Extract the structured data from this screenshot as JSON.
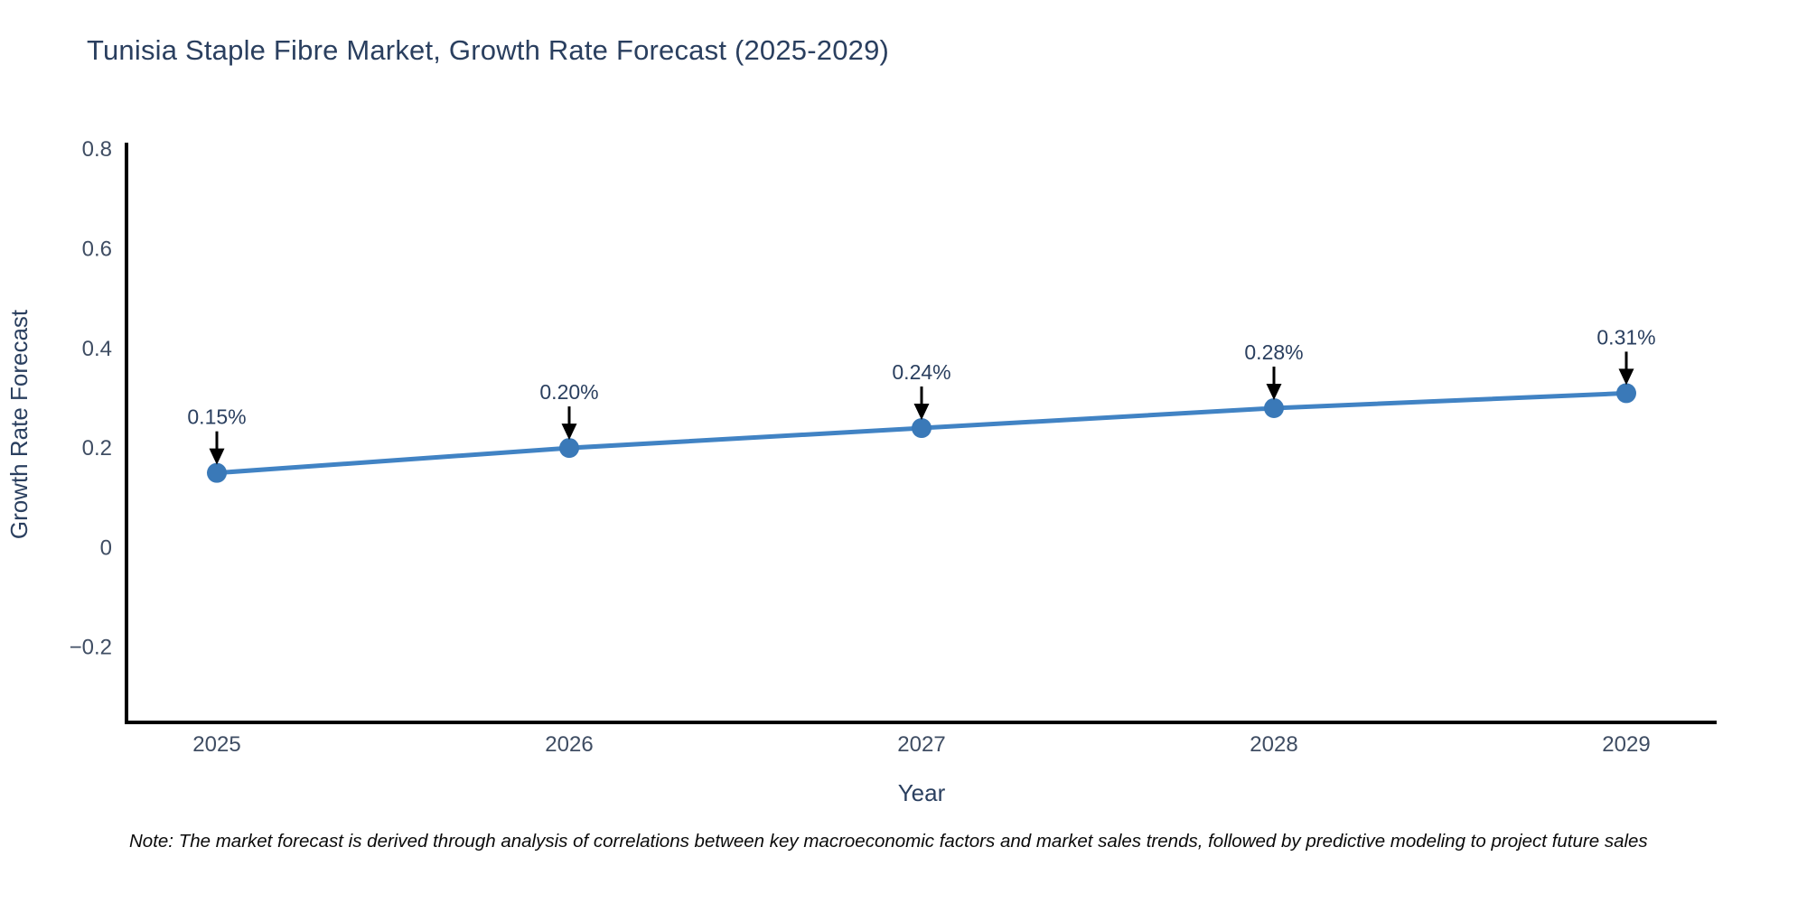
{
  "header": {
    "title": "Tunisia Staple Fibre Market, Growth Rate Forecast (2025-2029)"
  },
  "chart_data": {
    "type": "line",
    "title": "Tunisia Staple Fibre Market, Growth Rate Forecast (2025-2029)",
    "categories": [
      "2025",
      "2026",
      "2027",
      "2028",
      "2029"
    ],
    "values": [
      0.15,
      0.2,
      0.24,
      0.28,
      0.31
    ],
    "point_labels": [
      "0.15%",
      "0.20%",
      "0.24%",
      "0.28%",
      "0.31%"
    ],
    "xlabel": "Year",
    "ylabel": "Growth Rate Forecast",
    "ylim": [
      -0.351,
      0.813
    ],
    "yticks": [
      -0.2,
      0,
      0.2,
      0.4,
      0.6,
      0.8
    ],
    "ytick_labels": [
      "−0.2",
      "0",
      "0.2",
      "0.4",
      "0.6",
      "0.8"
    ],
    "grid": false,
    "legend": "none",
    "colors": {
      "line": "#4183c4",
      "marker": "#3a79b8",
      "arrow": "#000000",
      "axis": "#000000",
      "tick_text": "#3f4d63",
      "axis_label_text": "#2a3f5f",
      "annotation_text": "#2a3f5f"
    }
  },
  "footnote": {
    "text": "Note: The market forecast is derived through analysis of correlations between key macroeconomic factors and market sales trends, followed by predictive modeling to project future sales"
  }
}
